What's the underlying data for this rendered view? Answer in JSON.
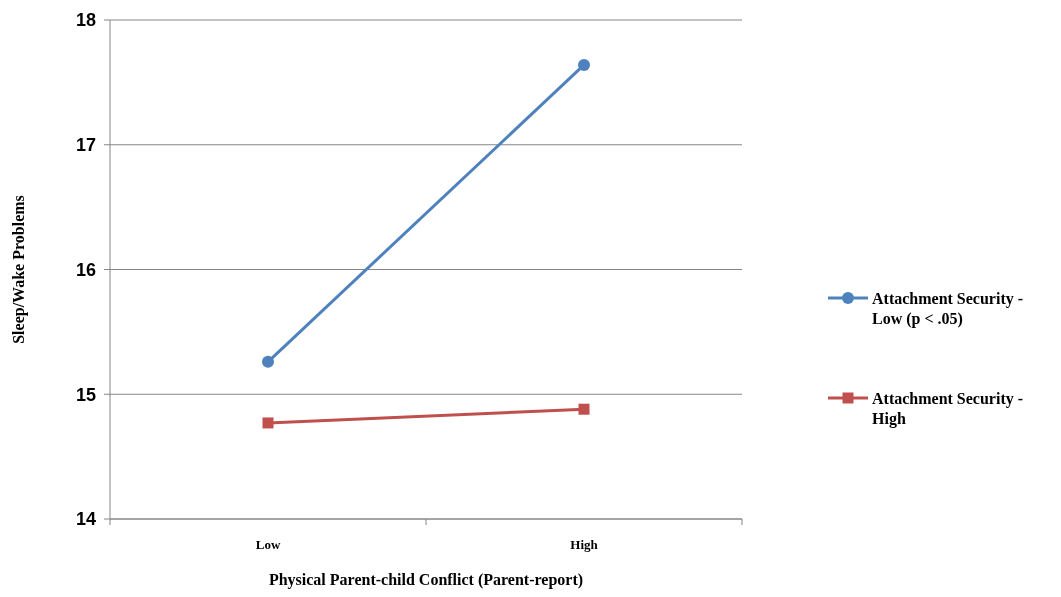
{
  "chart_data": {
    "type": "line",
    "xlabel": "Physical Parent-child Conflict (Parent-report)",
    "ylabel": "Sleep/Wake Problems",
    "categories": [
      "Low",
      "High"
    ],
    "ylim": [
      14,
      18
    ],
    "yticks": [
      14,
      15,
      16,
      17,
      18
    ],
    "grid": "y",
    "legend": "right",
    "series": [
      {
        "name": "Attachment Security - Low (p < .05)",
        "color": "#4f81bd",
        "values": [
          15.26,
          17.64
        ],
        "marker": "circle"
      },
      {
        "name": "Attachment Security - High",
        "color": "#c0504d",
        "values": [
          14.77,
          14.88
        ],
        "marker": "square"
      }
    ]
  }
}
